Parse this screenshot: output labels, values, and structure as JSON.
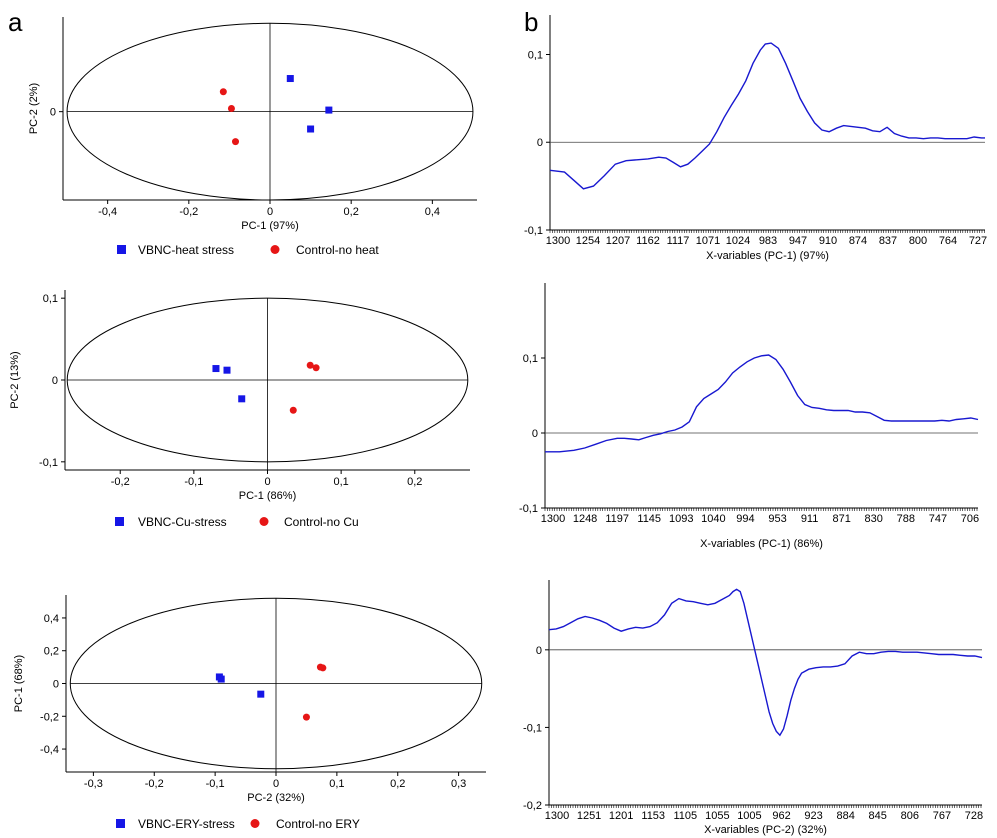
{
  "panel_labels": [
    "a",
    "b"
  ],
  "colors": {
    "stress": "#1616e6",
    "control": "#e61616",
    "loading": "#1818d0",
    "axis": "#000000"
  },
  "chart_data": [
    {
      "id": "a1",
      "type": "scatter",
      "xlabel": "PC-1 (97%)",
      "ylabel": "PC-2 (2%)",
      "xticks": [
        "-0,4",
        "-0,2",
        "0",
        "0,2",
        "0,4"
      ],
      "xtick_values": [
        -0.4,
        -0.2,
        0,
        0.2,
        0.4
      ],
      "yticks": [
        "0"
      ],
      "ytick_values": [
        0
      ],
      "xlim": [
        -0.51,
        0.51
      ],
      "ylim": [
        -0.028,
        0.03
      ],
      "series": [
        {
          "name": "VBNC-heat stress",
          "marker": "square",
          "points": [
            [
              0.05,
              0.0105
            ],
            [
              0.145,
              0.0005
            ],
            [
              0.1,
              -0.0055
            ]
          ]
        },
        {
          "name": "Control-no heat",
          "marker": "circle",
          "points": [
            [
              -0.115,
              0.0063
            ],
            [
              -0.095,
              0.001
            ],
            [
              -0.085,
              -0.0095
            ]
          ]
        }
      ],
      "ellipse": {
        "rx": 0.5,
        "ry": 0.028
      }
    },
    {
      "id": "a2",
      "type": "scatter",
      "xlabel": "PC-1 (86%)",
      "ylabel": "PC-2 (13%)",
      "xticks": [
        "-0,2",
        "-0,1",
        "0",
        "0,1",
        "0,2"
      ],
      "xtick_values": [
        -0.2,
        -0.1,
        0,
        0.1,
        0.2
      ],
      "yticks": [
        "0,1",
        "0",
        "-0,1"
      ],
      "ytick_values": [
        0.1,
        0,
        -0.1
      ],
      "xlim": [
        -0.275,
        0.275
      ],
      "ylim": [
        -0.11,
        0.11
      ],
      "series": [
        {
          "name": "VBNC-Cu-stress",
          "marker": "square",
          "points": [
            [
              -0.07,
              0.014
            ],
            [
              -0.055,
              0.012
            ],
            [
              -0.035,
              -0.023
            ]
          ]
        },
        {
          "name": "Control-no Cu",
          "marker": "circle",
          "points": [
            [
              0.058,
              0.018
            ],
            [
              0.066,
              0.015
            ],
            [
              0.035,
              -0.037
            ]
          ]
        }
      ],
      "ellipse": {
        "rx": 0.272,
        "ry": 0.1
      }
    },
    {
      "id": "a3",
      "type": "scatter",
      "xlabel": "PC-2 (32%)",
      "ylabel": "PC-1 (68%)",
      "xticks": [
        "-0,3",
        "-0,2",
        "-0,1",
        "0",
        "0,1",
        "0,2",
        "0,3"
      ],
      "xtick_values": [
        -0.3,
        -0.2,
        -0.1,
        0,
        0.1,
        0.2,
        0.3
      ],
      "yticks": [
        "0,4",
        "0,2",
        "0",
        "-0,2",
        "-0,4"
      ],
      "ytick_values": [
        0.4,
        0.2,
        0,
        -0.2,
        -0.4
      ],
      "xlim": [
        -0.345,
        0.345
      ],
      "ylim": [
        -0.54,
        0.54
      ],
      "series": [
        {
          "name": "VBNC-ERY-stress",
          "marker": "square",
          "points": [
            [
              -0.093,
              0.04
            ],
            [
              -0.09,
              0.027
            ],
            [
              -0.025,
              -0.065
            ]
          ]
        },
        {
          "name": "Control-no ERY",
          "marker": "circle",
          "points": [
            [
              0.073,
              0.1
            ],
            [
              0.077,
              0.095
            ],
            [
              0.05,
              -0.205
            ]
          ]
        }
      ],
      "ellipse": {
        "rx": 0.338,
        "ry": 0.52
      }
    },
    {
      "id": "b1",
      "type": "line",
      "xlabel": "X-variables (PC-1) (97%)",
      "xticks": [
        "1300",
        "1254",
        "1207",
        "1162",
        "1117",
        "1071",
        "1024",
        "983",
        "947",
        "910",
        "874",
        "837",
        "800",
        "764",
        "727"
      ],
      "xlim": [
        1300,
        700
      ],
      "ylim": [
        -0.1,
        0.145
      ],
      "yticks": [
        "0,1",
        "0",
        "-0,1"
      ],
      "ytick_values": [
        0.1,
        0,
        -0.1
      ],
      "series": [
        {
          "x": [
            1300,
            1280,
            1265,
            1254,
            1240,
            1225,
            1210,
            1195,
            1180,
            1165,
            1150,
            1140,
            1130,
            1120,
            1110,
            1100,
            1090,
            1080,
            1070,
            1060,
            1050,
            1040,
            1030,
            1020,
            1010,
            1003,
            995,
            985,
            975,
            965,
            955,
            945,
            935,
            925,
            915,
            905,
            895,
            885,
            875,
            865,
            855,
            845,
            835,
            825,
            815,
            805,
            795,
            785,
            775,
            765,
            755,
            745,
            735,
            725,
            715,
            705,
            700
          ],
          "y": [
            -0.032,
            -0.034,
            -0.045,
            -0.053,
            -0.05,
            -0.038,
            -0.025,
            -0.021,
            -0.02,
            -0.019,
            -0.017,
            -0.018,
            -0.023,
            -0.028,
            -0.025,
            -0.018,
            -0.01,
            -0.002,
            0.012,
            0.028,
            0.042,
            0.055,
            0.07,
            0.09,
            0.105,
            0.112,
            0.113,
            0.107,
            0.09,
            0.07,
            0.05,
            0.035,
            0.022,
            0.014,
            0.012,
            0.016,
            0.019,
            0.018,
            0.017,
            0.016,
            0.013,
            0.012,
            0.017,
            0.01,
            0.007,
            0.005,
            0.005,
            0.004,
            0.005,
            0.005,
            0.004,
            0.004,
            0.004,
            0.004,
            0.006,
            0.005,
            0.005
          ]
        }
      ]
    },
    {
      "id": "b2",
      "type": "line",
      "xlabel": "X-variables (PC-1) (86%)",
      "xticks": [
        "1300",
        "1248",
        "1197",
        "1145",
        "1093",
        "1040",
        "994",
        "953",
        "911",
        "871",
        "830",
        "788",
        "747",
        "706"
      ],
      "xlim": [
        1300,
        700
      ],
      "ylim": [
        -0.1,
        0.2
      ],
      "yticks": [
        "0,1",
        "0",
        "-0,1"
      ],
      "ytick_values": [
        0.1,
        0,
        -0.1
      ],
      "series": [
        {
          "x": [
            1300,
            1280,
            1260,
            1245,
            1230,
            1215,
            1200,
            1190,
            1180,
            1170,
            1160,
            1150,
            1140,
            1130,
            1120,
            1110,
            1100,
            1090,
            1080,
            1070,
            1060,
            1050,
            1040,
            1030,
            1020,
            1010,
            1000,
            990,
            980,
            970,
            960,
            950,
            940,
            930,
            920,
            910,
            900,
            890,
            880,
            870,
            860,
            850,
            840,
            830,
            820,
            810,
            800,
            790,
            780,
            770,
            760,
            750,
            740,
            730,
            720,
            710,
            700
          ],
          "y": [
            -0.025,
            -0.025,
            -0.023,
            -0.02,
            -0.015,
            -0.01,
            -0.007,
            -0.007,
            -0.008,
            -0.009,
            -0.006,
            -0.003,
            -0.001,
            0.002,
            0.004,
            0.008,
            0.015,
            0.035,
            0.046,
            0.052,
            0.058,
            0.068,
            0.08,
            0.088,
            0.095,
            0.1,
            0.103,
            0.104,
            0.098,
            0.085,
            0.068,
            0.05,
            0.038,
            0.034,
            0.033,
            0.031,
            0.03,
            0.03,
            0.03,
            0.028,
            0.028,
            0.027,
            0.022,
            0.017,
            0.016,
            0.016,
            0.016,
            0.016,
            0.016,
            0.016,
            0.016,
            0.017,
            0.016,
            0.018,
            0.019,
            0.02,
            0.018
          ]
        }
      ]
    },
    {
      "id": "b3",
      "type": "line",
      "xlabel": "X-variables (PC-2) (32%)",
      "xticks": [
        "1300",
        "1251",
        "1201",
        "1153",
        "1105",
        "1055",
        "1005",
        "962",
        "923",
        "884",
        "845",
        "806",
        "767",
        "728"
      ],
      "xlim": [
        1300,
        700
      ],
      "ylim": [
        -0.2,
        0.09
      ],
      "yticks": [
        "0",
        "-0,1",
        "-0,2"
      ],
      "ytick_values": [
        0,
        -0.1,
        -0.2
      ],
      "series": [
        {
          "x": [
            1300,
            1290,
            1280,
            1270,
            1260,
            1250,
            1240,
            1230,
            1220,
            1210,
            1200,
            1190,
            1180,
            1170,
            1160,
            1150,
            1140,
            1130,
            1120,
            1110,
            1100,
            1090,
            1080,
            1070,
            1060,
            1050,
            1045,
            1040,
            1035,
            1030,
            1025,
            1020,
            1015,
            1010,
            1005,
            1000,
            995,
            990,
            985,
            980,
            975,
            970,
            965,
            960,
            955,
            950,
            940,
            930,
            920,
            910,
            900,
            890,
            880,
            870,
            860,
            850,
            840,
            830,
            820,
            810,
            800,
            790,
            780,
            770,
            760,
            750,
            740,
            730,
            720,
            710,
            700
          ],
          "y": [
            0.026,
            0.027,
            0.03,
            0.035,
            0.04,
            0.043,
            0.041,
            0.038,
            0.034,
            0.028,
            0.024,
            0.027,
            0.029,
            0.028,
            0.03,
            0.035,
            0.045,
            0.06,
            0.066,
            0.063,
            0.062,
            0.06,
            0.058,
            0.06,
            0.065,
            0.07,
            0.075,
            0.078,
            0.075,
            0.06,
            0.04,
            0.02,
            0.0,
            -0.02,
            -0.04,
            -0.06,
            -0.08,
            -0.095,
            -0.105,
            -0.11,
            -0.102,
            -0.085,
            -0.065,
            -0.05,
            -0.038,
            -0.03,
            -0.025,
            -0.023,
            -0.022,
            -0.022,
            -0.021,
            -0.018,
            -0.008,
            -0.003,
            -0.005,
            -0.005,
            -0.003,
            -0.002,
            -0.002,
            -0.003,
            -0.003,
            -0.003,
            -0.004,
            -0.005,
            -0.006,
            -0.006,
            -0.006,
            -0.007,
            -0.008,
            -0.008,
            -0.01
          ]
        }
      ]
    }
  ]
}
